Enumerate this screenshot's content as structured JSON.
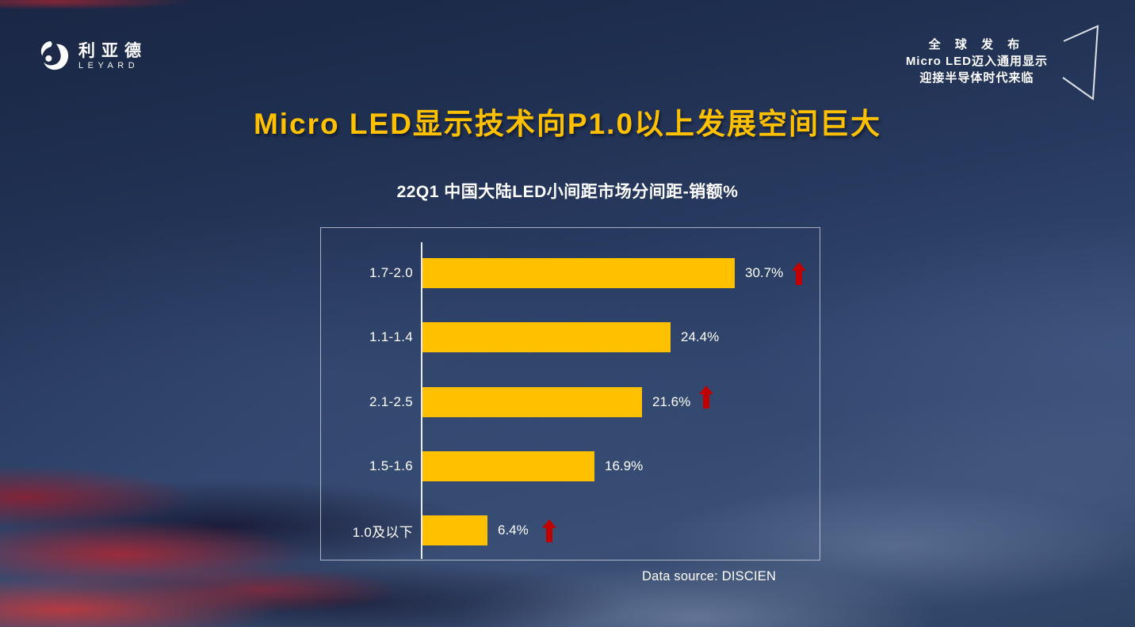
{
  "logo": {
    "cn": "利亚德",
    "en": "LEYARD"
  },
  "hero": {
    "lines": [
      "全 球 发 布",
      "Micro LED迈入通用显示",
      "迎接半导体时代来临"
    ]
  },
  "main_title": "Micro LED显示技术向P1.0以上发展空间巨大",
  "chart_data": {
    "type": "bar",
    "orientation": "horizontal",
    "title": "22Q1 中国大陆LED小间距市场分间距-销额%",
    "categories": [
      "1.7-2.0",
      "1.1-1.4",
      "2.1-2.5",
      "1.5-1.6",
      "1.0及以下"
    ],
    "values": [
      30.7,
      24.4,
      21.6,
      16.9,
      6.4
    ],
    "value_labels": [
      "30.7%",
      "24.4%",
      "21.6%",
      "16.9%",
      "6.4%"
    ],
    "up_arrow": [
      true,
      false,
      true,
      false,
      true
    ],
    "xlabel": "",
    "ylabel": "",
    "xlim": [
      0,
      39
    ],
    "grid": false,
    "legend": false,
    "bar_color": "#FFC000",
    "arrow_color": "#C00000",
    "source": "Data source: DISCIEN"
  },
  "colors": {
    "accent_gold": "#FFC000",
    "arrow_red": "#C00000",
    "text_white": "#FFFFFF"
  }
}
